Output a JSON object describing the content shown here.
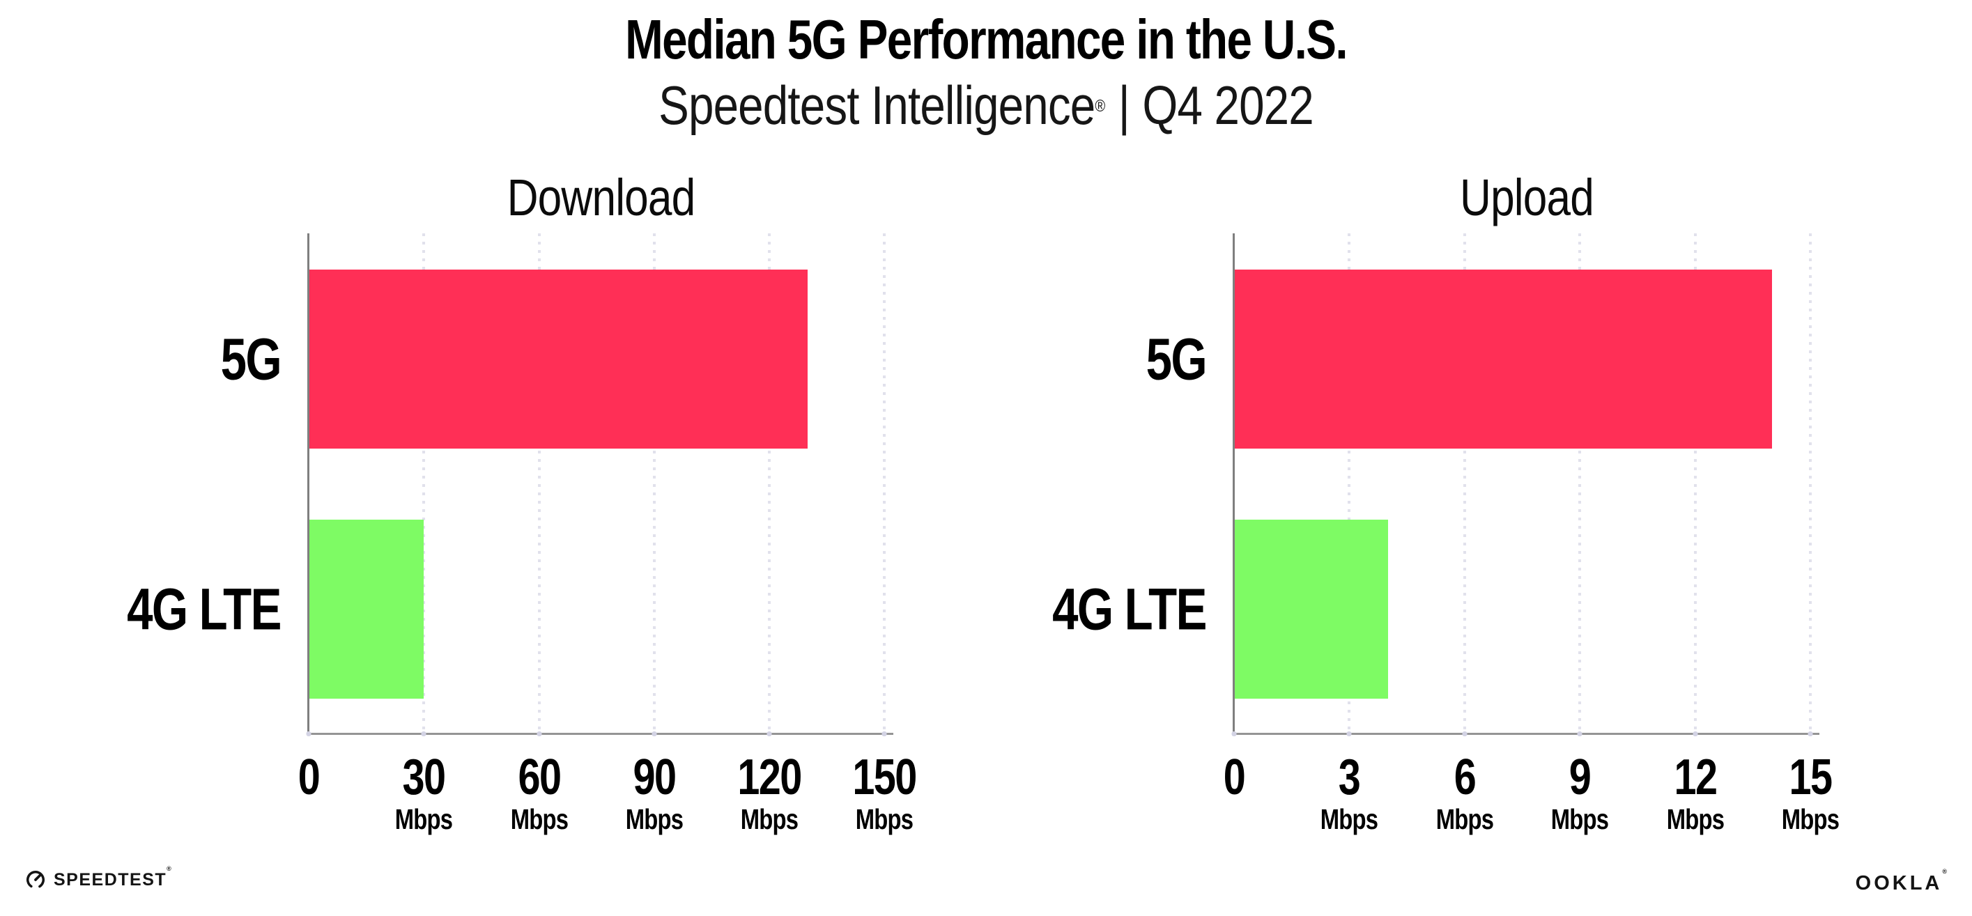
{
  "header": {
    "title": "Median 5G Performance in the U.S.",
    "subtitle_brand": "Speedtest Intelligence",
    "subtitle_reg": "®",
    "subtitle_separator": "|",
    "subtitle_period": "Q4 2022"
  },
  "footer": {
    "speedtest_label": "SPEEDTEST",
    "speedtest_mark": "®",
    "ookla_label": "OOKLA",
    "ookla_mark": "®"
  },
  "colors": {
    "bar_5g": "#FF2F56",
    "bar_4g_lte": "#7EFB64",
    "axis": "#8F8F8F",
    "gridline": "#E1E1EC",
    "text": "#000000"
  },
  "chart_data": [
    {
      "type": "bar",
      "title": "Download",
      "orientation": "horizontal",
      "categories": [
        "5G",
        "4G LTE"
      ],
      "values": [
        130,
        30
      ],
      "unit": "Mbps",
      "xticks": [
        0,
        30,
        60,
        90,
        120,
        150
      ],
      "xlim": [
        0,
        152.3
      ],
      "series_colors": [
        "#FF2F56",
        "#7EFB64"
      ],
      "grid": "vertical-dotted",
      "legend": "none"
    },
    {
      "type": "bar",
      "title": "Upload",
      "orientation": "horizontal",
      "categories": [
        "5G",
        "4G LTE"
      ],
      "values": [
        14,
        4
      ],
      "unit": "Mbps",
      "xticks": [
        0,
        3,
        6,
        9,
        12,
        15
      ],
      "xlim": [
        0,
        15.23
      ],
      "series_colors": [
        "#FF2F56",
        "#7EFB64"
      ],
      "grid": "vertical-dotted",
      "legend": "none"
    }
  ]
}
